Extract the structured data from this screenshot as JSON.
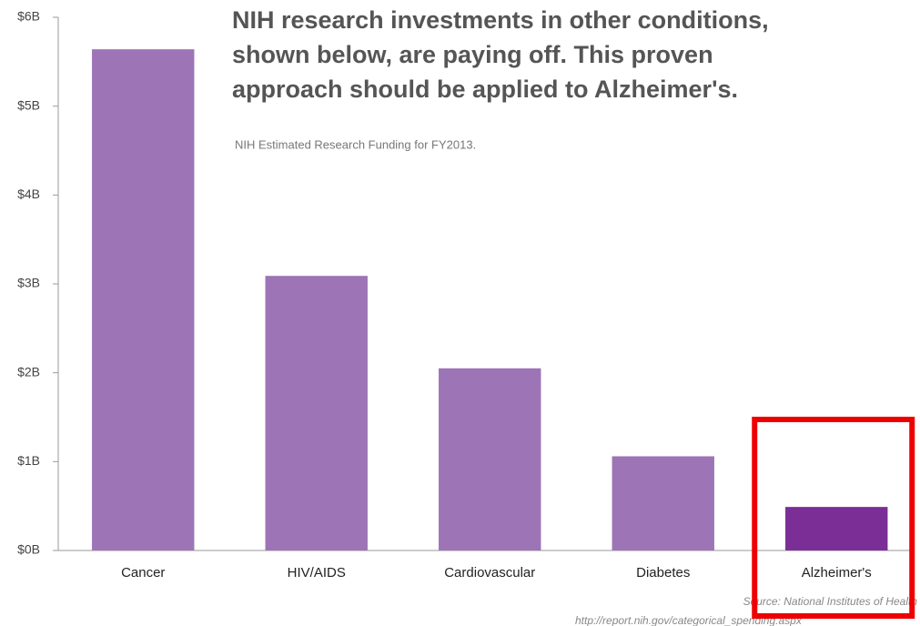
{
  "chart_data": {
    "type": "bar",
    "title": [
      "NIH research investments in other conditions,",
      "shown below, are paying off. This proven",
      "approach should be applied to Alzheimer's."
    ],
    "subtitle": "NIH Estimated Research Funding for FY2013.",
    "annotations": [
      "Source: National Institutes of Health",
      "http://report.nih.gov/categorical_spending.aspx"
    ],
    "categories": [
      "Cancer",
      "HIV/AIDS",
      "Cardiovascular",
      "Diabetes",
      "Alzheimer's"
    ],
    "values": [
      5.64,
      3.09,
      2.05,
      1.06,
      0.49
    ],
    "colors": [
      "#9d74b6",
      "#9d74b6",
      "#9d74b6",
      "#9d74b6",
      "#7a2e96"
    ],
    "highlight": 4,
    "ylim": [
      0,
      6
    ],
    "yticks": [
      {
        "value": 0,
        "label": "$0B"
      },
      {
        "value": 1,
        "label": "$1B"
      },
      {
        "value": 2,
        "label": "$2B"
      },
      {
        "value": 3,
        "label": "$3B"
      },
      {
        "value": 4,
        "label": "$4B"
      },
      {
        "value": 5,
        "label": "$5B"
      },
      {
        "value": 6,
        "label": "$6B"
      }
    ]
  }
}
